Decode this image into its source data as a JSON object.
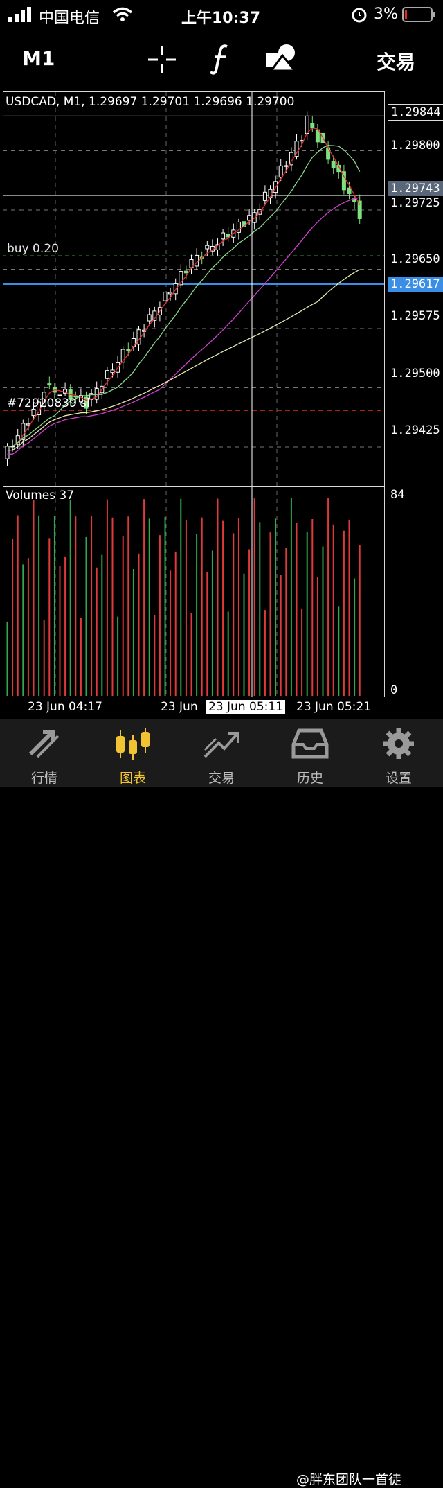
{
  "status_bar": {
    "carrier": "中国电信",
    "time": "上午10:37",
    "battery": "3%"
  },
  "toolbar": {
    "timeframe": "M1",
    "crosshair_icon": "crosshair-icon",
    "indicators_icon": "function-f-icon",
    "objects_icon": "shapes-icon",
    "trade_label": "交易"
  },
  "chart": {
    "symbol_line": "USDCAD, M1, 1.29697 1.29701 1.29696 1.29700",
    "order_label": "buy 0.20",
    "sl_label": "#72920839 sl",
    "volumes_label": "Volumes 37",
    "volume_max_label": "84",
    "volume_min_label": "0",
    "price_levels": [
      "1.29800",
      "1.29725",
      "1.29650",
      "1.29575",
      "1.29500",
      "1.29425"
    ],
    "high_label": "1.29844",
    "bid_label": "1.29743",
    "buy_price_label": "1.29617",
    "time_labels": [
      "23 Jun 04:17",
      "23 Jun",
      "23 Jun 05:11",
      "23 Jun 05:21"
    ],
    "colors": {
      "bull": "#ffffff",
      "bear": "#7fe07f",
      "buy_line": "#3a8ee6",
      "sl_line": "#e03030",
      "ma_fast": "#e03030",
      "ma_mid": "#8ad88a",
      "ma_slow": "#d040d0",
      "ma_long": "#e8e8b0",
      "vol_up": "#2fa84f",
      "vol_down": "#e03a3a"
    }
  },
  "chart_data": {
    "type": "candlestick",
    "ylim": [
      1.29375,
      1.29875
    ],
    "y_ticks": [
      1.29425,
      1.295,
      1.29575,
      1.2965,
      1.29725,
      1.298
    ],
    "volume_ylim": [
      0,
      84
    ],
    "note_levels": {
      "high": 1.29844,
      "bid": 1.29743,
      "buy": 1.29617
    }
  },
  "bottom_nav": {
    "items": [
      {
        "label": "行情",
        "icon": "quotes-arrows-icon"
      },
      {
        "label": "图表",
        "icon": "candles-icon"
      },
      {
        "label": "交易",
        "icon": "trade-trend-icon"
      },
      {
        "label": "历史",
        "icon": "history-inbox-icon"
      },
      {
        "label": "设置",
        "icon": "gear-icon"
      }
    ],
    "watermark": "@胖东团队一首徒"
  }
}
